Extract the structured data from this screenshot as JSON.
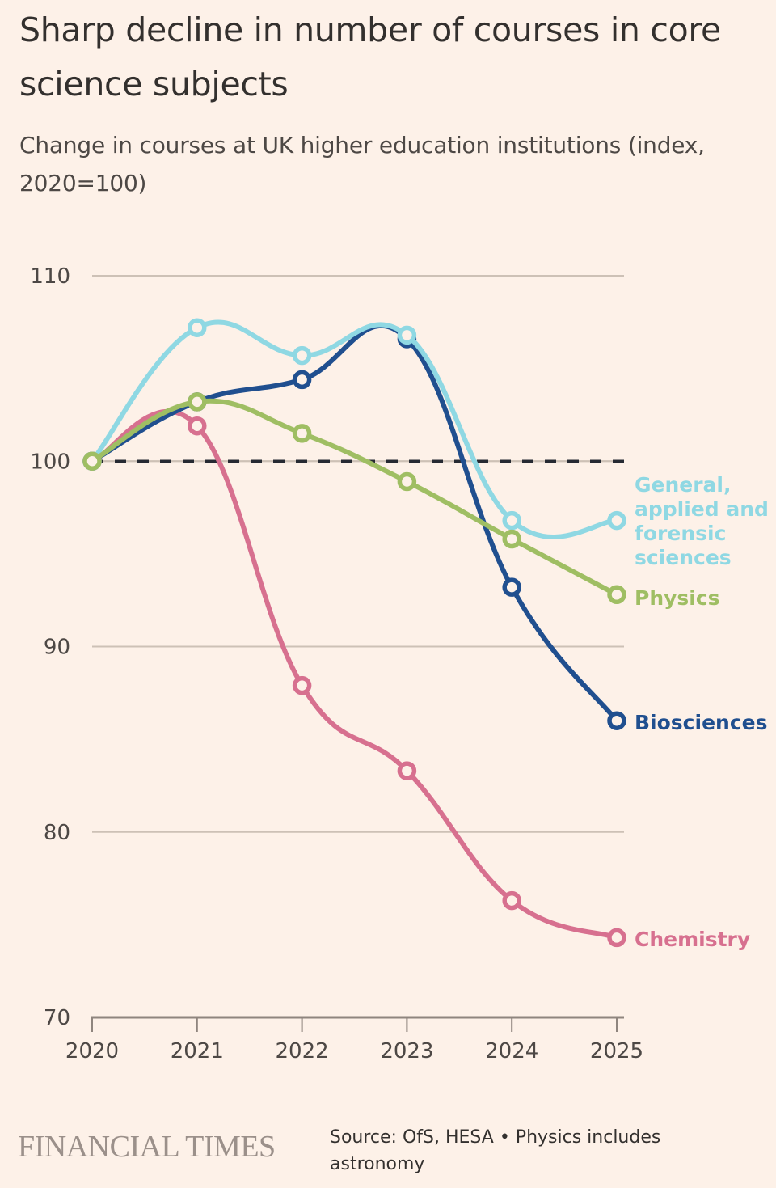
{
  "header": {
    "title": "Sharp decline in number of courses in core science subjects",
    "subtitle": "Change in courses at UK higher education institutions (index, 2020=100)"
  },
  "footer": {
    "logo": "FINANCIAL TIMES",
    "source": "Source: OfS, HESA • Physics includes astronomy"
  },
  "chart_data": {
    "type": "line",
    "title": "Sharp decline in number of courses in core science subjects",
    "subtitle": "Change in courses at UK higher education institutions (index, 2020=100)",
    "xlabel": "",
    "ylabel": "",
    "x": [
      "2020",
      "2021",
      "2022",
      "2023",
      "2024",
      "2025"
    ],
    "ylim": [
      70,
      110
    ],
    "yticks": [
      70,
      80,
      90,
      100,
      110
    ],
    "reference_line": 100,
    "grid": true,
    "legend": "direct labels at line ends (right)",
    "series": [
      {
        "name": "General, applied and forensic sciences",
        "label_lines": [
          "General,",
          "applied and",
          "forensic",
          "sciences"
        ],
        "color": "#8fd8e3",
        "values": [
          100,
          107.2,
          105.7,
          106.8,
          96.8,
          96.8
        ]
      },
      {
        "name": "Biosciences",
        "label_lines": [
          "Biosciences"
        ],
        "color": "#204f8f",
        "values": [
          100,
          103.2,
          104.4,
          106.6,
          93.2,
          86.0
        ]
      },
      {
        "name": "Physics",
        "label_lines": [
          "Physics"
        ],
        "color": "#9fbe63",
        "values": [
          100,
          103.2,
          101.5,
          98.9,
          95.8,
          92.8
        ]
      },
      {
        "name": "Chemistry",
        "label_lines": [
          "Chemistry"
        ],
        "color": "#d7708f",
        "values": [
          100,
          101.9,
          87.9,
          83.3,
          76.3,
          74.3
        ]
      }
    ]
  }
}
